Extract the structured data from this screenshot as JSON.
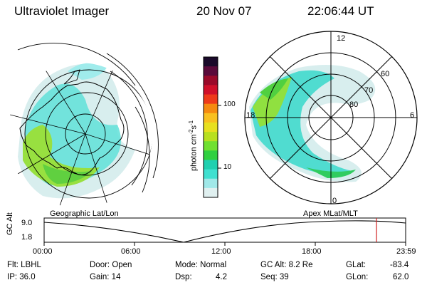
{
  "header": {
    "title": "Ultraviolet Imager",
    "date": "20 Nov 07",
    "time": "22:06:44 UT"
  },
  "left_panel": {
    "label": "Geographic Lat/Lon"
  },
  "right_panel": {
    "label": "Apex MLat/MLT",
    "mlt_labels": {
      "top": "12",
      "left": "18",
      "right": "6",
      "bottom": "0"
    },
    "lat_labels": [
      "60",
      "70",
      "80"
    ]
  },
  "colorbar": {
    "unit": "photon cm",
    "unit_sup1": "-2",
    "unit_mid": "s",
    "unit_sup2": "-1",
    "ticks": [
      "100",
      "10"
    ],
    "colors": [
      "#1a0a2a",
      "#5a0a3a",
      "#9a0a2a",
      "#d0102a",
      "#ee3a1a",
      "#f58a10",
      "#f8c020",
      "#e8e020",
      "#b8e020",
      "#70e030",
      "#30d040",
      "#20d0b0",
      "#40e0d0",
      "#a0e8e8",
      "#e0f0f0"
    ]
  },
  "timeline": {
    "axis_label": "GC Alt",
    "y_top": "9.0",
    "y_bottom": "1.8",
    "x_ticks": [
      "00:00",
      "06:00",
      "12:00",
      "18:00",
      "23:59"
    ],
    "marker_color": "#d02020"
  },
  "info": {
    "filter": "Flt: LBHL",
    "ip": "IP: 36.0",
    "door": "Door: Open",
    "gain": "Gain: 14",
    "mode": "Mode: Normal",
    "dsp_label": "Dsp:",
    "dsp_value": "4.2",
    "gc_alt": "GC Alt: 8.2 Re",
    "seq": "Seq: 39",
    "glat_label": "GLat:",
    "glat_value": "-83.4",
    "glon_label": "GLon:",
    "glon_value": "62.0"
  }
}
